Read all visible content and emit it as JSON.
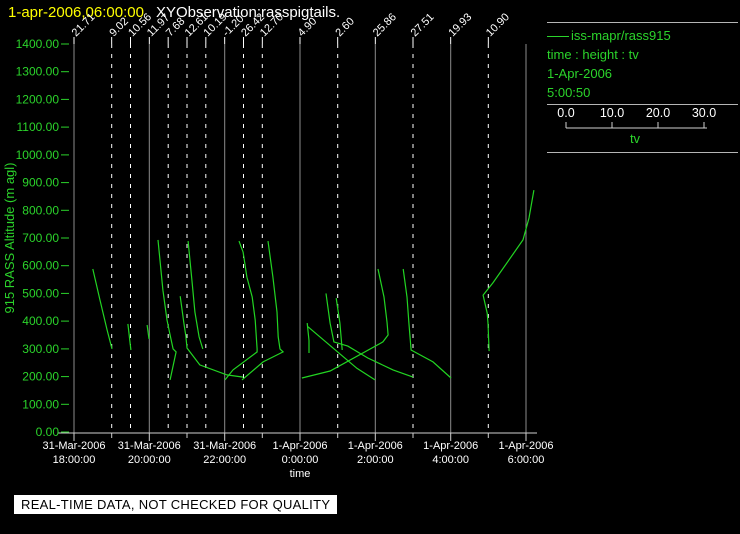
{
  "header": {
    "datetime": "1-apr-2006,06:00:00",
    "title": "XYObservation:rasspigtails."
  },
  "colors": {
    "trace_green": "#22d422",
    "text_green": "#2bd42b",
    "title_yellow": "#ffff00",
    "grid_gray": "#8c8c8c",
    "axis_white": "#d0d0d0",
    "label_white": "#ffffff"
  },
  "legend": {
    "series": "iss-mapr/rass915",
    "mapping": "time : height : tv",
    "date": "1-Apr-2006",
    "time": "5:00:50",
    "scale": {
      "values": [
        "0.0",
        "10.0",
        "20.0",
        "30.0"
      ],
      "label": "tv"
    }
  },
  "footer": {
    "warning": "REAL-TIME DATA, NOT CHECKED FOR QUALITY"
  },
  "chart_data": {
    "type": "line",
    "title": "XYObservation:rasspigtails.",
    "xlabel": "time",
    "ylabel": "915 RASS Altitude (m agl)",
    "ylim": [
      0,
      1400
    ],
    "ytick_step": 100,
    "x_hours_range": [
      0,
      12
    ],
    "x_ticks": [
      {
        "h": 0,
        "date": "31-Mar-2006",
        "time": "18:00:00"
      },
      {
        "h": 2,
        "date": "31-Mar-2006",
        "time": "20:00:00"
      },
      {
        "h": 4,
        "date": "31-Mar-2006",
        "time": "22:00:00"
      },
      {
        "h": 6,
        "date": "1-Apr-2006",
        "time": "0:00:00"
      },
      {
        "h": 8,
        "date": "1-Apr-2006",
        "time": "2:00:00"
      },
      {
        "h": 10,
        "date": "1-Apr-2006",
        "time": "4:00:00"
      },
      {
        "h": 12,
        "date": "1-Apr-2006",
        "time": "6:00:00"
      }
    ],
    "minor_tick_hours": [
      1,
      3,
      5,
      7,
      9,
      11
    ],
    "extra_gridline_hours": [
      12
    ],
    "observations": [
      {
        "h": 0,
        "tv": "21.71"
      },
      {
        "h": 1,
        "tv": "9.02"
      },
      {
        "h": 1.5,
        "tv": "10.56"
      },
      {
        "h": 2,
        "tv": "11.97"
      },
      {
        "h": 2.5,
        "tv": "7.68"
      },
      {
        "h": 3,
        "tv": "12.61"
      },
      {
        "h": 3.5,
        "tv": "10.19"
      },
      {
        "h": 4,
        "tv": "-1.20"
      },
      {
        "h": 4.5,
        "tv": "26.42"
      },
      {
        "h": 5,
        "tv": "12.70"
      },
      {
        "h": 6,
        "tv": "4.90"
      },
      {
        "h": 7,
        "tv": "2.60"
      },
      {
        "h": 8,
        "tv": "25.86"
      },
      {
        "h": 9,
        "tv": "27.51"
      },
      {
        "h": 10,
        "tv": "19.93"
      },
      {
        "h": 11,
        "tv": "10.90"
      }
    ],
    "traces": [
      [
        [
          0.5,
          588
        ],
        [
          0.69,
          476
        ],
        [
          0.88,
          368
        ],
        [
          1.01,
          300
        ]
      ],
      [
        [
          1.43,
          390
        ],
        [
          1.51,
          296
        ]
      ],
      [
        [
          1.94,
          386
        ],
        [
          1.99,
          336
        ]
      ],
      [
        [
          2.23,
          693
        ],
        [
          2.36,
          512
        ],
        [
          2.47,
          404
        ],
        [
          2.55,
          350
        ],
        [
          2.63,
          300
        ],
        [
          2.71,
          289
        ],
        [
          2.55,
          188
        ]
      ],
      [
        [
          2.82,
          490
        ],
        [
          2.92,
          390
        ],
        [
          2.97,
          345
        ],
        [
          3.0,
          303
        ],
        [
          3.34,
          242
        ],
        [
          4.06,
          206
        ],
        [
          4.49,
          198
        ]
      ],
      [
        [
          3.03,
          689
        ],
        [
          3.13,
          548
        ],
        [
          3.21,
          433
        ],
        [
          3.32,
          343
        ],
        [
          3.42,
          300
        ]
      ],
      [
        [
          4.38,
          689
        ],
        [
          4.49,
          649
        ],
        [
          4.59,
          559
        ],
        [
          4.73,
          487
        ],
        [
          4.81,
          404
        ],
        [
          4.86,
          300
        ],
        [
          4.86,
          289
        ],
        [
          4.22,
          224
        ],
        [
          4.01,
          188
        ]
      ],
      [
        [
          5.15,
          689
        ],
        [
          5.28,
          559
        ],
        [
          5.39,
          433
        ],
        [
          5.42,
          343
        ],
        [
          5.47,
          300
        ],
        [
          5.55,
          289
        ],
        [
          5.02,
          253
        ],
        [
          4.46,
          188
        ]
      ],
      [
        [
          6.19,
          393
        ],
        [
          6.24,
          330
        ],
        [
          6.24,
          285
        ]
      ],
      [
        [
          6.21,
          380
        ],
        [
          7.51,
          230
        ],
        [
          7.99,
          188
        ]
      ],
      [
        [
          6.69,
          500
        ],
        [
          6.8,
          393
        ],
        [
          6.9,
          325
        ],
        [
          7.27,
          310
        ],
        [
          7.8,
          267
        ],
        [
          8.47,
          224
        ],
        [
          9.0,
          198
        ]
      ],
      [
        [
          6.96,
          483
        ],
        [
          7.06,
          393
        ],
        [
          7.12,
          296
        ]
      ],
      [
        [
          8.07,
          588
        ],
        [
          8.23,
          487
        ],
        [
          8.31,
          397
        ],
        [
          8.34,
          350
        ],
        [
          8.2,
          325
        ],
        [
          6.8,
          220
        ],
        [
          6.05,
          195
        ]
      ],
      [
        [
          8.74,
          588
        ],
        [
          8.84,
          487
        ],
        [
          8.89,
          393
        ],
        [
          8.95,
          296
        ],
        [
          9.53,
          253
        ],
        [
          10.01,
          195
        ]
      ],
      [
        [
          11.02,
          292
        ],
        [
          10.99,
          393
        ],
        [
          10.97,
          429
        ],
        [
          10.86,
          494
        ],
        [
          11.12,
          538
        ],
        [
          11.92,
          693
        ],
        [
          12.08,
          772
        ],
        [
          12.21,
          873
        ]
      ]
    ]
  }
}
